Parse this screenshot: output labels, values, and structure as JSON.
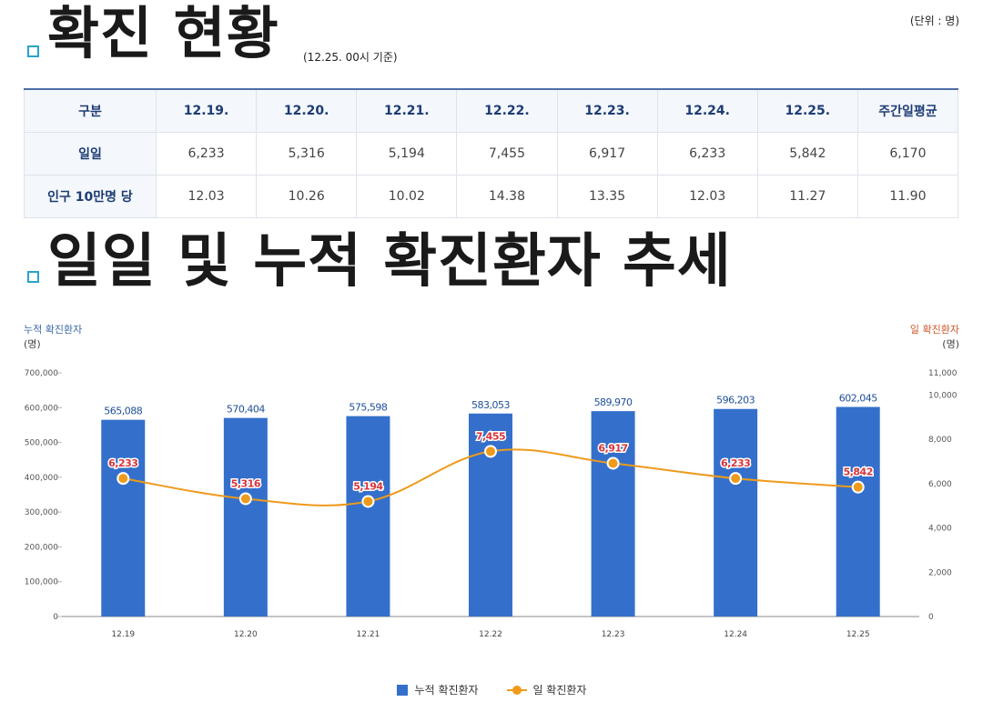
{
  "section1": {
    "title": "확진 현황",
    "basis": "(12.25. 00시 기준)",
    "unit": "(단위 : 명)"
  },
  "table": {
    "headers": [
      "구분",
      "12.19.",
      "12.20.",
      "12.21.",
      "12.22.",
      "12.23.",
      "12.24.",
      "12.25.",
      "주간일평균"
    ],
    "rows": [
      {
        "label": "일일",
        "values": [
          "6,233",
          "5,316",
          "5,194",
          "7,455",
          "6,917",
          "6,233",
          "5,842",
          "6,170"
        ]
      },
      {
        "label": "인구 10만명 당",
        "values": [
          "12.03",
          "10.26",
          "10.02",
          "14.38",
          "13.35",
          "12.03",
          "11.27",
          "11.90"
        ]
      }
    ]
  },
  "section2": {
    "title": "일일 및 누적 확진환자 추세"
  },
  "chart_data": {
    "type": "bar",
    "categories": [
      "12.19",
      "12.20",
      "12.21",
      "12.22",
      "12.23",
      "12.24",
      "12.25"
    ],
    "series": [
      {
        "name": "누적 확진환자",
        "type": "bar",
        "axis": "left",
        "color": "#3470cb",
        "values": [
          565088,
          570404,
          575598,
          583053,
          589970,
          596203,
          602045
        ],
        "labels": [
          "565,088",
          "570,404",
          "575,598",
          "583,053",
          "589,970",
          "596,203",
          "602,045"
        ]
      },
      {
        "name": "일 확진환자",
        "type": "line",
        "axis": "right",
        "color": "#ee9a1b",
        "values": [
          6233,
          5316,
          5194,
          7455,
          6917,
          6233,
          5842
        ],
        "labels": [
          "6,233",
          "5,316",
          "5,194",
          "7,455",
          "6,917",
          "6,233",
          "5,842"
        ]
      }
    ],
    "left_axis": {
      "title": "누적 확진환자",
      "unit": "(명)",
      "ylim": [
        0,
        700000
      ],
      "ticks": [
        0,
        100000,
        200000,
        300000,
        400000,
        500000,
        600000,
        700000
      ],
      "tick_labels": [
        "0",
        "100,000",
        "200,000",
        "300,000",
        "400,000",
        "500,000",
        "600,000",
        "700,000"
      ]
    },
    "right_axis": {
      "title": "일 확진환자",
      "unit": "(명)",
      "ylim": [
        0,
        11000
      ],
      "ticks": [
        0,
        2000,
        4000,
        6000,
        8000,
        10000,
        11000
      ],
      "tick_labels": [
        "0",
        "2,000",
        "4,000",
        "6,000",
        "8,000",
        "10,000",
        "11,000"
      ]
    },
    "grid": false,
    "legend_position": "bottom-center"
  }
}
